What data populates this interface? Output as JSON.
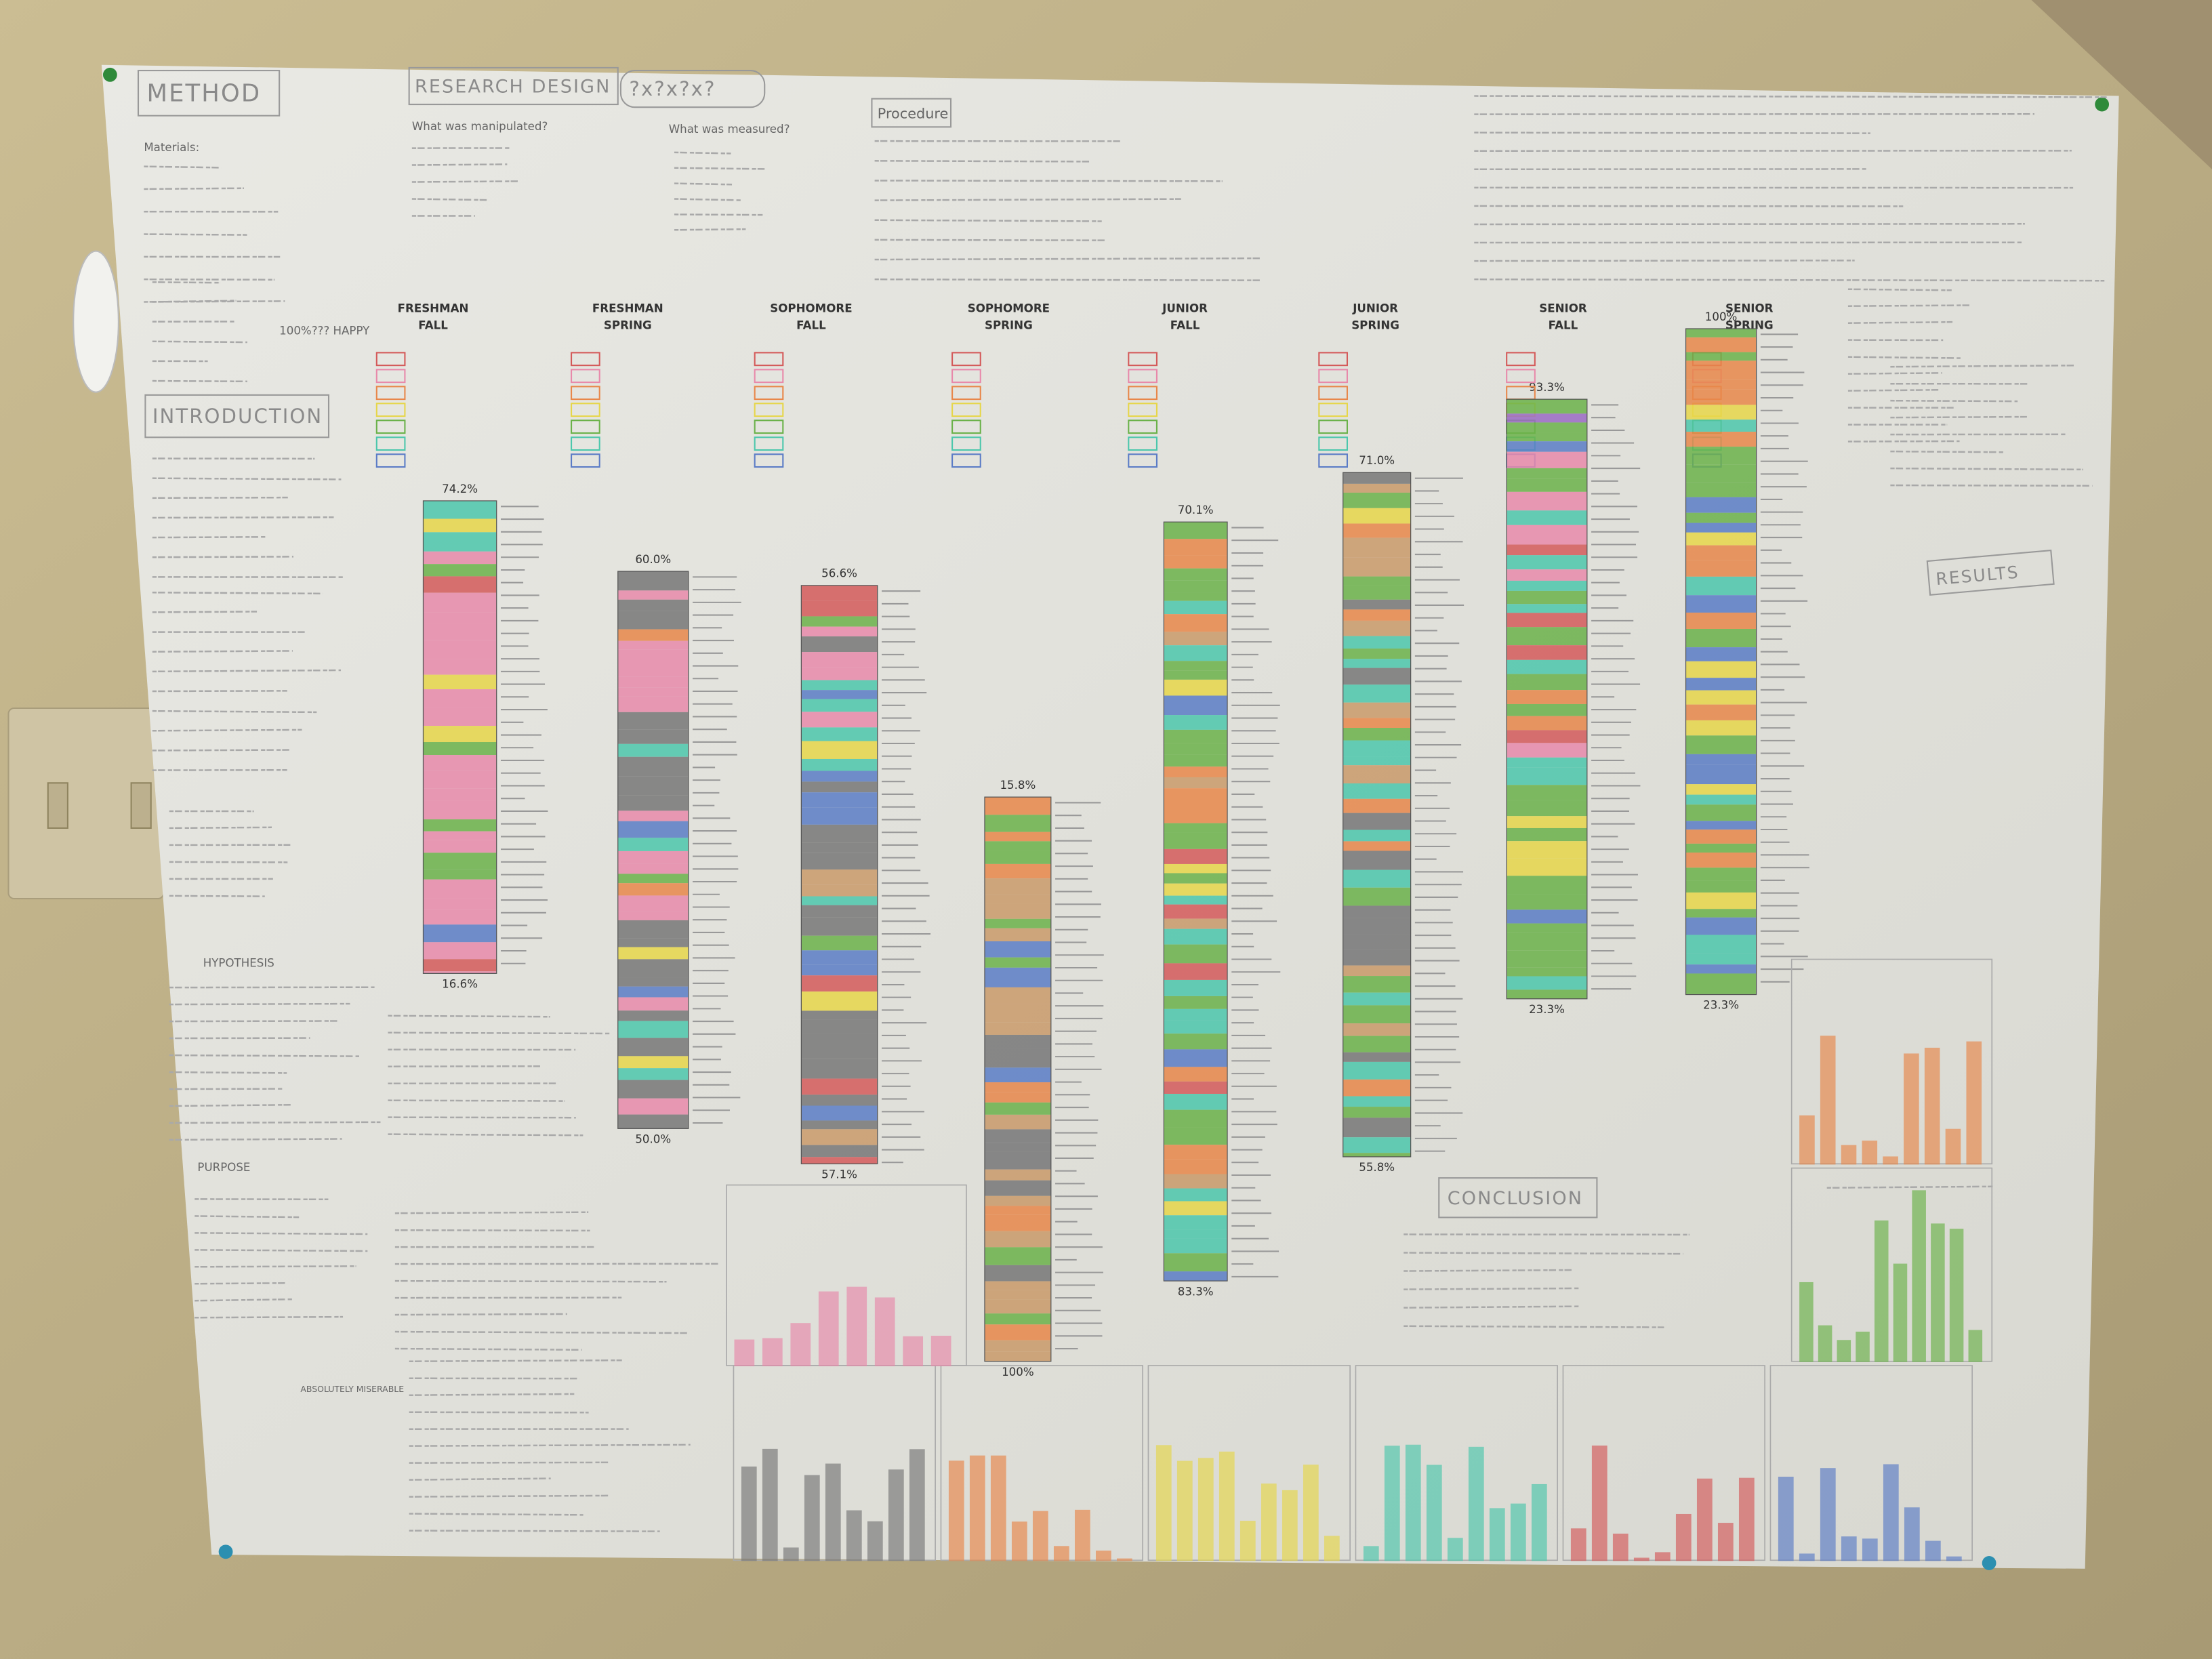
{
  "sections": {
    "method": "METHOD",
    "materials": "Materials:",
    "happy": "100%??? HAPPY",
    "introduction": "INTRODUCTION",
    "hypothesis": "HYPOTHESIS",
    "purpose": "PURPOSE",
    "research_design": "RESEARCH DESIGN",
    "design_code": "?x?x?x?",
    "manipulated": "What was manipulated?",
    "measured": "What was measured?",
    "procedure": "Procedure",
    "results": "RESULTS",
    "conclusion": "CONCLUSION",
    "miserable": "ABSOLUTELY MISERABLE"
  },
  "columns": [
    {
      "year": "FRESHMAN",
      "term": "FALL",
      "top": "74.2%",
      "bottom": "16.6%"
    },
    {
      "year": "FRESHMAN",
      "term": "SPRING",
      "top": "60.0%",
      "bottom": "50.0%"
    },
    {
      "year": "SOPHOMORE",
      "term": "FALL",
      "top": "56.6%",
      "bottom": "57.1%"
    },
    {
      "year": "SOPHOMORE",
      "term": "SPRING",
      "top": "15.8%",
      "bottom": "100%"
    },
    {
      "year": "JUNIOR",
      "term": "FALL",
      "top": "70.1%",
      "bottom": "83.3%"
    },
    {
      "year": "JUNIOR",
      "term": "SPRING",
      "top": "71.0%",
      "bottom": "55.8%"
    },
    {
      "year": "SENIOR",
      "term": "FALL",
      "top": "93.3%",
      "bottom": "23.3%"
    },
    {
      "year": "SENIOR",
      "term": "SPRING",
      "top": "100%",
      "bottom": "23.3%"
    }
  ]
}
